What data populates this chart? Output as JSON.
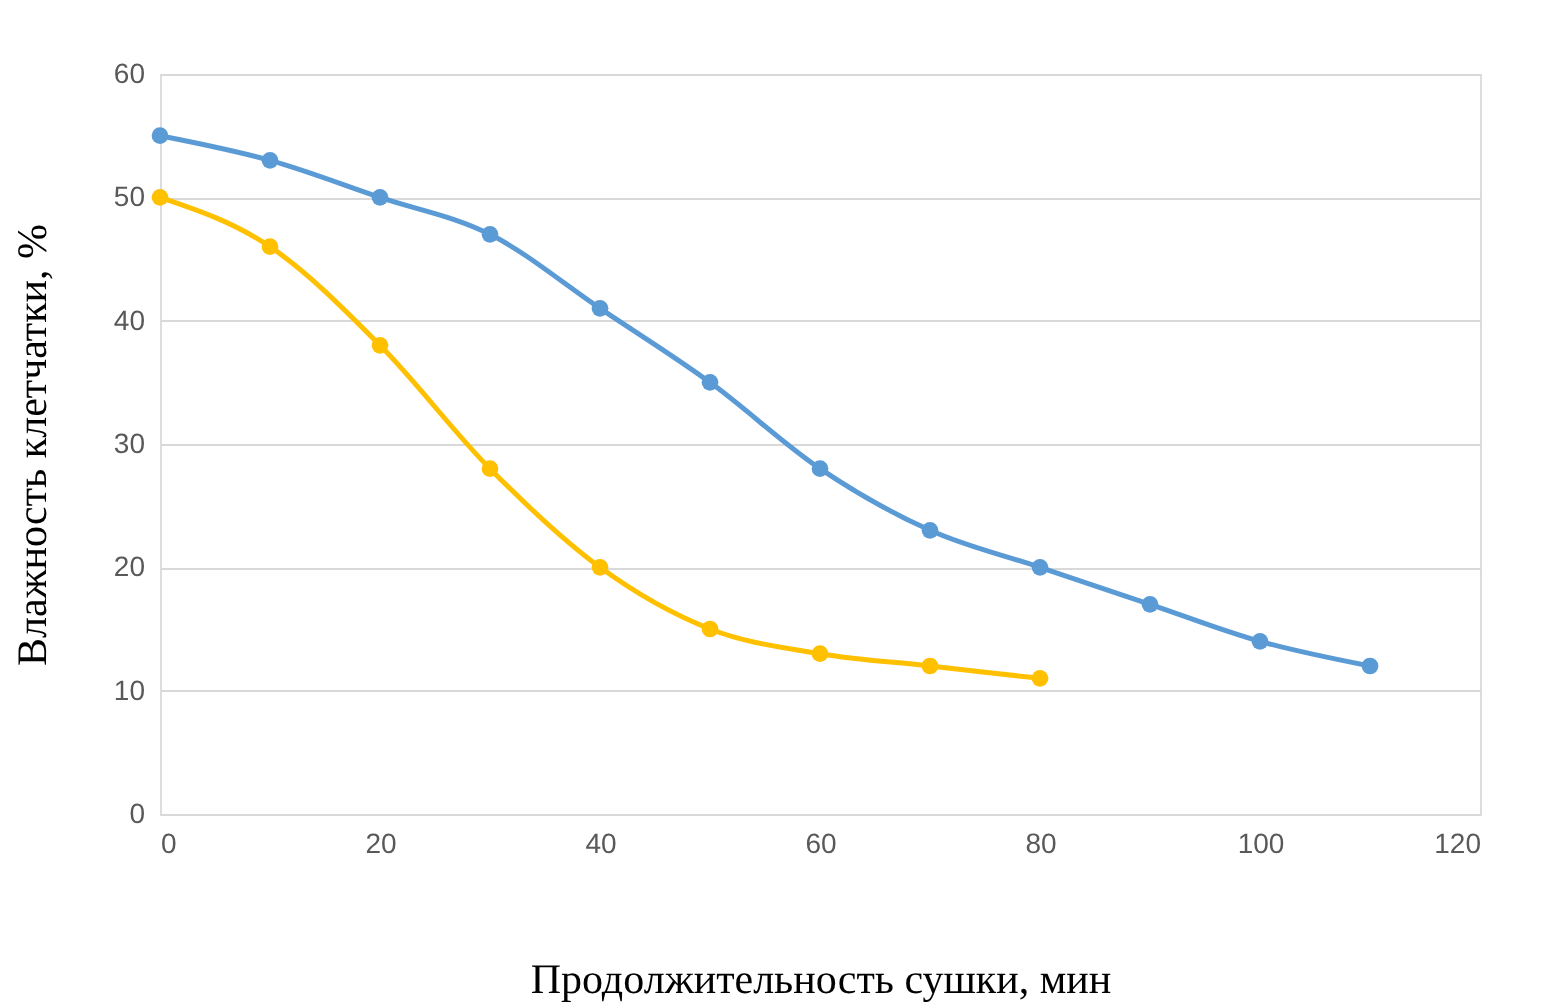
{
  "chart_data": {
    "type": "line",
    "xlabel": "Продолжительность сушки, мин",
    "ylabel": "Влажность клетчатки, %",
    "series": [
      {
        "color": "#5b9bd5",
        "x": [
          0,
          10,
          20,
          30,
          40,
          50,
          60,
          70,
          80,
          90,
          100,
          110
        ],
        "values": [
          55,
          53,
          50,
          47,
          41,
          35,
          28,
          23,
          20,
          17,
          14,
          12
        ]
      },
      {
        "color": "#ffc000",
        "x": [
          0,
          10,
          20,
          30,
          40,
          50,
          60,
          70,
          80
        ],
        "values": [
          50,
          46,
          38,
          28,
          20,
          15,
          13,
          12,
          11
        ]
      }
    ],
    "xlim": [
      0,
      120
    ],
    "xticks": [
      0,
      20,
      40,
      60,
      80,
      100,
      120
    ],
    "ylim": [
      0,
      60
    ],
    "yticks": [
      0,
      10,
      20,
      30,
      40,
      50,
      60
    ],
    "grid": "y",
    "marker": "circle",
    "line_style": "solid",
    "legend": false
  }
}
